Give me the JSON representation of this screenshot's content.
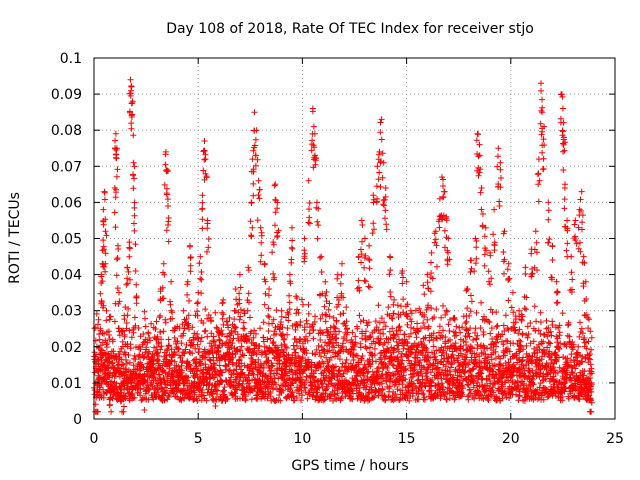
{
  "chart_data": {
    "type": "scatter",
    "title": "Day 108 of 2018, Rate Of TEC Index for receiver stjo",
    "xlabel": "GPS time / hours",
    "ylabel": "ROTI / TECUs",
    "xlim": [
      0,
      25
    ],
    "ylim": [
      0,
      0.1
    ],
    "xticks": [
      0,
      5,
      10,
      15,
      20,
      25
    ],
    "xtick_labels": [
      "0",
      "5",
      "10",
      "15",
      "20",
      "25"
    ],
    "yticks": [
      0,
      0.01,
      0.02,
      0.03,
      0.04,
      0.05,
      0.06,
      0.07,
      0.08,
      0.09,
      0.1
    ],
    "ytick_labels": [
      "0",
      "0.01",
      "0.02",
      "0.03",
      "0.04",
      "0.05",
      "0.06",
      "0.07",
      "0.08",
      "0.09",
      "0.1"
    ],
    "grid": true,
    "legend": "none",
    "marker": "plus",
    "color": "#ff0000",
    "series": [
      {
        "name": "ROTI",
        "points": [
          [
            0.1,
            0.006
          ],
          [
            0.2,
            0.012
          ],
          [
            0.3,
            0.025
          ],
          [
            0.35,
            0.04
          ],
          [
            0.4,
            0.043
          ],
          [
            0.45,
            0.058
          ],
          [
            0.5,
            0.063
          ],
          [
            0.55,
            0.052
          ],
          [
            0.6,
            0.03
          ],
          [
            0.7,
            0.018
          ],
          [
            0.8,
            0.01
          ],
          [
            0.9,
            0.022
          ],
          [
            1.0,
            0.064
          ],
          [
            1.05,
            0.079
          ],
          [
            1.1,
            0.075
          ],
          [
            1.15,
            0.048
          ],
          [
            1.2,
            0.035
          ],
          [
            1.3,
            0.014
          ],
          [
            1.4,
            0.01
          ],
          [
            1.5,
            0.031
          ],
          [
            1.6,
            0.042
          ],
          [
            1.7,
            0.049
          ],
          [
            1.75,
            0.094
          ],
          [
            1.8,
            0.092
          ],
          [
            1.85,
            0.088
          ],
          [
            1.9,
            0.071
          ],
          [
            1.95,
            0.06
          ],
          [
            2.0,
            0.041
          ],
          [
            2.2,
            0.02
          ],
          [
            2.4,
            0.012
          ],
          [
            2.6,
            0.024
          ],
          [
            2.8,
            0.018
          ],
          [
            3.0,
            0.027
          ],
          [
            3.2,
            0.036
          ],
          [
            3.35,
            0.043
          ],
          [
            3.45,
            0.074
          ],
          [
            3.5,
            0.069
          ],
          [
            3.55,
            0.059
          ],
          [
            3.7,
            0.038
          ],
          [
            3.9,
            0.025
          ],
          [
            4.1,
            0.013
          ],
          [
            4.3,
            0.03
          ],
          [
            4.5,
            0.038
          ],
          [
            4.6,
            0.048
          ],
          [
            4.8,
            0.022
          ],
          [
            5.0,
            0.035
          ],
          [
            5.1,
            0.045
          ],
          [
            5.2,
            0.062
          ],
          [
            5.3,
            0.077
          ],
          [
            5.35,
            0.072
          ],
          [
            5.45,
            0.055
          ],
          [
            5.6,
            0.028
          ],
          [
            5.8,
            0.015
          ],
          [
            6.0,
            0.024
          ],
          [
            6.2,
            0.033
          ],
          [
            6.5,
            0.028
          ],
          [
            6.8,
            0.036
          ],
          [
            7.0,
            0.04
          ],
          [
            7.2,
            0.03
          ],
          [
            7.4,
            0.042
          ],
          [
            7.55,
            0.06
          ],
          [
            7.6,
            0.072
          ],
          [
            7.7,
            0.085
          ],
          [
            7.8,
            0.08
          ],
          [
            7.9,
            0.066
          ],
          [
            8.0,
            0.053
          ],
          [
            8.2,
            0.043
          ],
          [
            8.4,
            0.036
          ],
          [
            8.6,
            0.049
          ],
          [
            8.7,
            0.065
          ],
          [
            8.8,
            0.06
          ],
          [
            9.0,
            0.03
          ],
          [
            9.2,
            0.02
          ],
          [
            9.4,
            0.04
          ],
          [
            9.5,
            0.053
          ],
          [
            9.7,
            0.034
          ],
          [
            9.9,
            0.022
          ],
          [
            10.1,
            0.05
          ],
          [
            10.3,
            0.066
          ],
          [
            10.5,
            0.086
          ],
          [
            10.55,
            0.081
          ],
          [
            10.6,
            0.079
          ],
          [
            10.7,
            0.06
          ],
          [
            10.9,
            0.045
          ],
          [
            11.1,
            0.038
          ],
          [
            11.3,
            0.032
          ],
          [
            11.5,
            0.028
          ],
          [
            11.7,
            0.04
          ],
          [
            11.9,
            0.043
          ],
          [
            12.1,
            0.031
          ],
          [
            12.4,
            0.024
          ],
          [
            12.7,
            0.045
          ],
          [
            12.85,
            0.055
          ],
          [
            13.0,
            0.05
          ],
          [
            13.2,
            0.048
          ],
          [
            13.4,
            0.062
          ],
          [
            13.6,
            0.07
          ],
          [
            13.7,
            0.074
          ],
          [
            13.8,
            0.083
          ],
          [
            13.9,
            0.071
          ],
          [
            14.0,
            0.064
          ],
          [
            14.2,
            0.045
          ],
          [
            14.4,
            0.033
          ],
          [
            14.6,
            0.029
          ],
          [
            14.8,
            0.041
          ],
          [
            15.0,
            0.038
          ],
          [
            15.2,
            0.03
          ],
          [
            15.5,
            0.025
          ],
          [
            15.8,
            0.037
          ],
          [
            16.0,
            0.04
          ],
          [
            16.2,
            0.046
          ],
          [
            16.4,
            0.052
          ],
          [
            16.6,
            0.061
          ],
          [
            16.7,
            0.067
          ],
          [
            16.8,
            0.063
          ],
          [
            16.9,
            0.056
          ],
          [
            17.0,
            0.05
          ],
          [
            17.3,
            0.028
          ],
          [
            17.6,
            0.022
          ],
          [
            17.9,
            0.036
          ],
          [
            18.1,
            0.044
          ],
          [
            18.3,
            0.05
          ],
          [
            18.4,
            0.079
          ],
          [
            18.5,
            0.076
          ],
          [
            18.6,
            0.064
          ],
          [
            18.8,
            0.053
          ],
          [
            19.0,
            0.046
          ],
          [
            19.2,
            0.058
          ],
          [
            19.4,
            0.075
          ],
          [
            19.5,
            0.071
          ],
          [
            19.7,
            0.052
          ],
          [
            19.9,
            0.043
          ],
          [
            20.1,
            0.035
          ],
          [
            20.4,
            0.03
          ],
          [
            20.7,
            0.042
          ],
          [
            21.0,
            0.047
          ],
          [
            21.2,
            0.052
          ],
          [
            21.35,
            0.072
          ],
          [
            21.45,
            0.093
          ],
          [
            21.5,
            0.085
          ],
          [
            21.6,
            0.081
          ],
          [
            21.8,
            0.06
          ],
          [
            22.0,
            0.048
          ],
          [
            22.2,
            0.038
          ],
          [
            22.45,
            0.09
          ],
          [
            22.5,
            0.086
          ],
          [
            22.55,
            0.078
          ],
          [
            22.6,
            0.065
          ],
          [
            22.7,
            0.055
          ],
          [
            22.9,
            0.045
          ],
          [
            23.1,
            0.055
          ],
          [
            23.3,
            0.058
          ],
          [
            23.4,
            0.063
          ],
          [
            23.5,
            0.045
          ],
          [
            23.6,
            0.038
          ],
          [
            23.7,
            0.028
          ],
          [
            23.8,
            0.018
          ],
          [
            23.85,
            0.01
          ]
        ],
        "dense_band": {
          "x_start": 0.0,
          "x_end": 23.9,
          "step_hours": 0.04,
          "floor": 0.002,
          "base": 0.005,
          "baseline": [
            [
              0,
              0.013
            ],
            [
              1,
              0.015
            ],
            [
              2,
              0.012
            ],
            [
              3,
              0.012
            ],
            [
              4,
              0.012
            ],
            [
              5,
              0.014
            ],
            [
              6,
              0.014
            ],
            [
              7,
              0.016
            ],
            [
              8,
              0.015
            ],
            [
              9,
              0.014
            ],
            [
              10,
              0.017
            ],
            [
              11,
              0.016
            ],
            [
              12,
              0.014
            ],
            [
              13,
              0.014
            ],
            [
              14,
              0.016
            ],
            [
              15,
              0.014
            ],
            [
              16,
              0.015
            ],
            [
              17,
              0.016
            ],
            [
              18,
              0.015
            ],
            [
              19,
              0.016
            ],
            [
              20,
              0.013
            ],
            [
              21,
              0.014
            ],
            [
              22,
              0.015
            ],
            [
              23,
              0.012
            ],
            [
              24,
              0.01
            ]
          ],
          "spread": 0.018
        }
      }
    ]
  }
}
